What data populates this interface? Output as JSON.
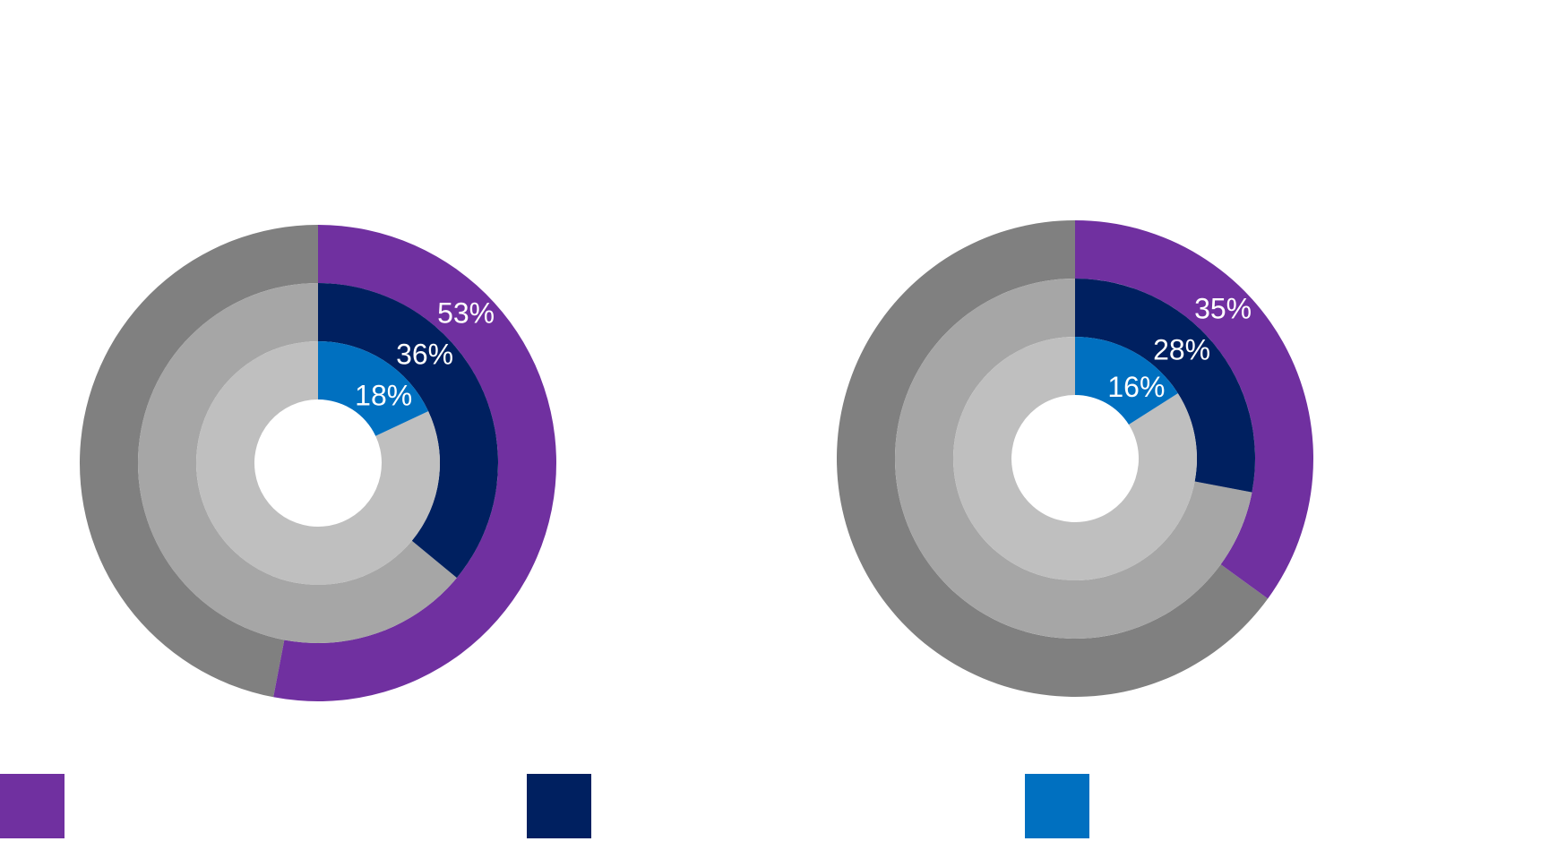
{
  "colors": {
    "outer_ring": "#7030A0",
    "middle_ring": "#002060",
    "inner_ring": "#0070C0",
    "outer_rest": "#808080",
    "middle_rest": "#A6A6A6",
    "inner_rest": "#BFBFBF",
    "label": "#FFFFFF",
    "background": "#FFFFFF"
  },
  "chart_data": [
    {
      "type": "pie",
      "variant": "multi-ring donut",
      "title": "",
      "rings": [
        {
          "position": "outer",
          "value": 53,
          "label": "53%"
        },
        {
          "position": "middle",
          "value": 36,
          "label": "36%"
        },
        {
          "position": "inner",
          "value": 18,
          "label": "18%"
        }
      ]
    },
    {
      "type": "pie",
      "variant": "multi-ring donut",
      "title": "",
      "rings": [
        {
          "position": "outer",
          "value": 35,
          "label": "35%"
        },
        {
          "position": "middle",
          "value": 28,
          "label": "28%"
        },
        {
          "position": "inner",
          "value": 16,
          "label": "16%"
        }
      ]
    }
  ],
  "legend": {
    "placement": "bottom",
    "items": [
      {
        "swatch_color": "#7030A0",
        "label": ""
      },
      {
        "swatch_color": "#002060",
        "label": ""
      },
      {
        "swatch_color": "#0070C0",
        "label": ""
      }
    ]
  }
}
